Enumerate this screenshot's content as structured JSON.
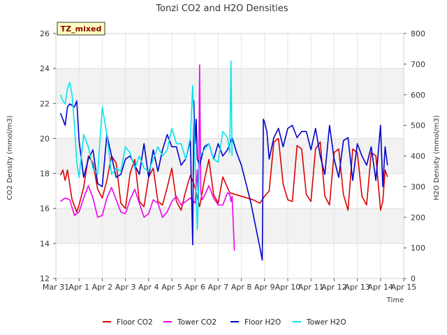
{
  "chart_data": {
    "type": "line",
    "title": "Tonzi CO2 and H2O Densities",
    "badge": "TZ_mixed",
    "xlabel": "Time",
    "ylabel_left": "CO2 Density (mmol/m3)",
    "ylabel_right": "H2O Density (mmol/m3)",
    "xlim": [
      0,
      15
    ],
    "ylim_left": [
      12,
      26
    ],
    "ylim_right": [
      0,
      800
    ],
    "x_ticks": [
      {
        "v": 0,
        "label": "Mar 31"
      },
      {
        "v": 1,
        "label": "Apr 1"
      },
      {
        "v": 2,
        "label": "Apr 2"
      },
      {
        "v": 3,
        "label": "Apr 3"
      },
      {
        "v": 4,
        "label": "Apr 4"
      },
      {
        "v": 5,
        "label": "Apr 5"
      },
      {
        "v": 6,
        "label": "Apr 6"
      },
      {
        "v": 7,
        "label": "Apr 7"
      },
      {
        "v": 8,
        "label": "Apr 8"
      },
      {
        "v": 9,
        "label": "Apr 9"
      },
      {
        "v": 10,
        "label": "Apr 10"
      },
      {
        "v": 11,
        "label": "Apr 11"
      },
      {
        "v": 12,
        "label": "Apr 12"
      },
      {
        "v": 13,
        "label": "Apr 13"
      },
      {
        "v": 14,
        "label": "Apr 14"
      },
      {
        "v": 15,
        "label": "Apr 15"
      }
    ],
    "y_left_ticks": [
      {
        "v": 12,
        "label": "12"
      },
      {
        "v": 14,
        "label": "14"
      },
      {
        "v": 16,
        "label": "16"
      },
      {
        "v": 18,
        "label": "18"
      },
      {
        "v": 20,
        "label": "20"
      },
      {
        "v": 22,
        "label": "22"
      },
      {
        "v": 24,
        "label": "24"
      },
      {
        "v": 26,
        "label": "26"
      }
    ],
    "y_right_ticks": [
      {
        "v": 0,
        "label": "0"
      },
      {
        "v": 100,
        "label": "100"
      },
      {
        "v": 200,
        "label": "200"
      },
      {
        "v": 300,
        "label": "300"
      },
      {
        "v": 400,
        "label": "400"
      },
      {
        "v": 500,
        "label": "500"
      },
      {
        "v": 600,
        "label": "600"
      },
      {
        "v": 700,
        "label": "700"
      },
      {
        "v": 800,
        "label": "800"
      }
    ],
    "bands_left": [
      [
        14,
        16
      ],
      [
        18,
        20
      ],
      [
        22,
        24
      ]
    ],
    "series": [
      {
        "name": "Floor CO2",
        "axis": "left",
        "color": "#dd0000",
        "x": [
          0.2,
          0.3,
          0.4,
          0.5,
          0.7,
          0.9,
          1.0,
          1.2,
          1.4,
          1.6,
          1.8,
          2.0,
          2.2,
          2.4,
          2.6,
          2.8,
          3.0,
          3.2,
          3.4,
          3.6,
          3.8,
          4.0,
          4.2,
          4.4,
          4.6,
          4.8,
          5.0,
          5.2,
          5.4,
          5.6,
          5.8,
          6.0,
          6.2,
          6.4,
          6.5,
          6.6,
          6.8,
          7.0,
          7.2,
          7.5,
          8.0,
          8.5,
          8.8,
          9.0,
          9.2,
          9.4,
          9.6,
          9.8,
          10.0,
          10.2,
          10.4,
          10.6,
          10.8,
          11.0,
          11.2,
          11.4,
          11.6,
          11.8,
          12.0,
          12.2,
          12.4,
          12.6,
          12.8,
          13.0,
          13.2,
          13.4,
          13.6,
          13.8,
          14.0,
          14.1,
          14.2,
          14.3
        ],
        "y": [
          17.9,
          18.2,
          17.6,
          18.2,
          16.5,
          15.8,
          16.2,
          17.2,
          19.0,
          18.6,
          17.1,
          16.6,
          17.6,
          19.0,
          18.6,
          16.3,
          16.0,
          18.0,
          18.8,
          16.4,
          16.1,
          17.8,
          18.3,
          16.4,
          16.2,
          17.2,
          18.3,
          16.4,
          15.9,
          17.0,
          17.9,
          17.2,
          16.1,
          17.6,
          18.2,
          18.8,
          16.8,
          16.3,
          17.8,
          16.9,
          16.7,
          16.5,
          16.3,
          16.7,
          17.0,
          19.8,
          20.0,
          17.4,
          16.5,
          16.4,
          19.6,
          19.4,
          16.8,
          16.4,
          19.4,
          19.8,
          16.7,
          16.2,
          19.2,
          19.4,
          16.8,
          15.9,
          19.4,
          19.2,
          16.7,
          16.2,
          19.2,
          19.0,
          15.9,
          16.4,
          18.2,
          17.8
        ]
      },
      {
        "name": "Tower CO2",
        "axis": "left",
        "color": "#ee00ee",
        "x": [
          0.2,
          0.4,
          0.6,
          0.8,
          1.0,
          1.2,
          1.4,
          1.6,
          1.8,
          2.0,
          2.2,
          2.4,
          2.6,
          2.8,
          3.0,
          3.2,
          3.4,
          3.6,
          3.8,
          4.0,
          4.2,
          4.4,
          4.6,
          4.8,
          5.0,
          5.2,
          5.4,
          5.6,
          5.8,
          6.0,
          6.1,
          6.15,
          6.2,
          6.25,
          6.3,
          6.4,
          6.6,
          6.8,
          7.0,
          7.2,
          7.4,
          7.5,
          7.55,
          7.6,
          7.7
        ],
        "y": [
          16.4,
          16.6,
          16.5,
          15.6,
          15.8,
          16.6,
          17.3,
          16.6,
          15.5,
          15.6,
          16.6,
          17.2,
          16.5,
          15.8,
          15.7,
          16.5,
          17.1,
          16.3,
          15.5,
          15.7,
          16.5,
          16.3,
          15.5,
          15.8,
          16.4,
          16.7,
          16.2,
          16.4,
          16.6,
          16.3,
          18.2,
          16.3,
          24.2,
          17.0,
          16.5,
          16.7,
          17.3,
          16.6,
          16.2,
          16.2,
          16.9,
          16.8,
          16.4,
          16.7,
          13.6
        ]
      },
      {
        "name": "Floor H2O",
        "axis": "right",
        "color": "#0000cc",
        "x": [
          0.2,
          0.4,
          0.5,
          0.6,
          0.8,
          0.9,
          1.0,
          1.2,
          1.4,
          1.6,
          1.8,
          2.0,
          2.2,
          2.4,
          2.6,
          2.8,
          3.0,
          3.2,
          3.4,
          3.6,
          3.8,
          4.0,
          4.2,
          4.4,
          4.6,
          4.8,
          5.0,
          5.2,
          5.4,
          5.6,
          5.8,
          5.9,
          5.95,
          6.0,
          6.05,
          6.1,
          6.2,
          6.4,
          6.6,
          6.8,
          7.0,
          7.2,
          7.4,
          7.6,
          7.8,
          8.0,
          8.4,
          8.8,
          8.9,
          8.95,
          9.0,
          9.1,
          9.2,
          9.4,
          9.6,
          9.8,
          10.0,
          10.2,
          10.4,
          10.6,
          10.8,
          11.0,
          11.2,
          11.4,
          11.6,
          11.8,
          12.0,
          12.2,
          12.4,
          12.6,
          12.8,
          13.0,
          13.2,
          13.4,
          13.6,
          13.8,
          14.0,
          14.1,
          14.2,
          14.3
        ],
        "y": [
          540,
          500,
          560,
          570,
          560,
          580,
          450,
          330,
          390,
          420,
          310,
          300,
          470,
          400,
          330,
          340,
          390,
          400,
          370,
          340,
          440,
          330,
          420,
          350,
          420,
          470,
          430,
          430,
          370,
          390,
          450,
          110,
          580,
          440,
          520,
          390,
          370,
          430,
          440,
          390,
          440,
          400,
          420,
          460,
          410,
          370,
          250,
          100,
          60,
          520,
          510,
          480,
          390,
          460,
          490,
          430,
          490,
          500,
          460,
          480,
          480,
          420,
          490,
          400,
          340,
          500,
          390,
          330,
          450,
          460,
          320,
          440,
          400,
          370,
          430,
          320,
          500,
          300,
          430,
          370
        ]
      },
      {
        "name": "Tower H2O",
        "axis": "right",
        "color": "#00e5ee",
        "x": [
          0.2,
          0.3,
          0.4,
          0.5,
          0.6,
          0.7,
          0.8,
          0.9,
          1.0,
          1.2,
          1.4,
          1.6,
          1.8,
          2.0,
          2.2,
          2.4,
          2.6,
          2.8,
          3.0,
          3.2,
          3.4,
          3.6,
          3.8,
          4.0,
          4.2,
          4.4,
          4.6,
          4.8,
          5.0,
          5.2,
          5.4,
          5.6,
          5.8,
          5.9,
          6.0,
          6.1,
          6.2,
          6.3,
          6.4,
          6.5,
          6.6,
          6.8,
          7.0,
          7.2,
          7.4,
          7.5,
          7.55,
          7.6
        ],
        "y": [
          600,
          580,
          570,
          620,
          640,
          600,
          500,
          380,
          330,
          470,
          430,
          360,
          340,
          560,
          470,
          340,
          360,
          350,
          430,
          410,
          360,
          400,
          360,
          350,
          390,
          430,
          400,
          420,
          490,
          440,
          440,
          390,
          460,
          630,
          380,
          160,
          400,
          410,
          420,
          430,
          440,
          390,
          380,
          480,
          460,
          410,
          710,
          400
        ]
      }
    ]
  }
}
